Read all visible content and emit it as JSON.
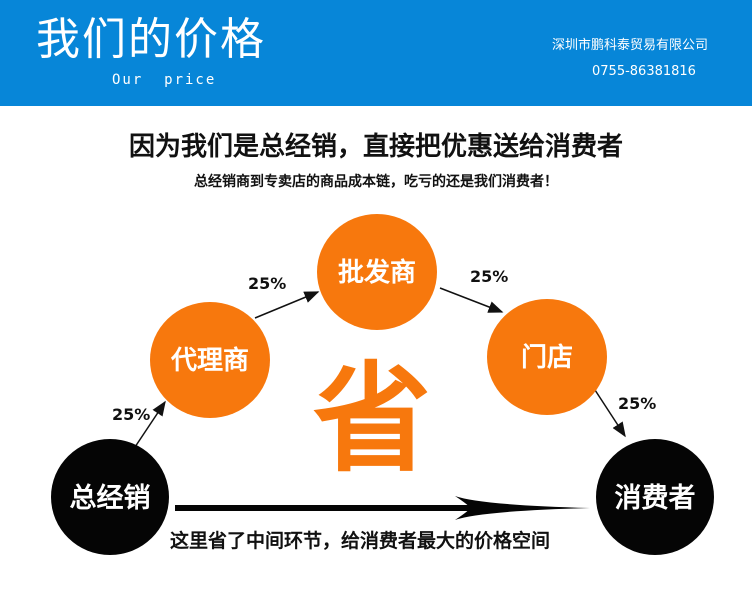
{
  "header": {
    "title": "我们的价格",
    "subtitle": "Our  price",
    "company": "深圳市鹏科泰贸易有限公司",
    "phone": "0755-86381816",
    "background_color": "#0786d8"
  },
  "headline": "因为我们是总经销，直接把优惠送给消费者",
  "subline": "总经销商到专卖店的商品成本链，吃亏的还是我们消费者！",
  "diagram": {
    "nodes": [
      "总经销",
      "代理商",
      "批发商",
      "门店",
      "消费者"
    ],
    "edge_labels": [
      "25%",
      "25%",
      "25%",
      "25%"
    ],
    "center_char": "省",
    "bottom_note": "这里省了中间环节，给消费者最大的价格空间",
    "orange_color": "#f7780d",
    "black_color": "#050505"
  }
}
